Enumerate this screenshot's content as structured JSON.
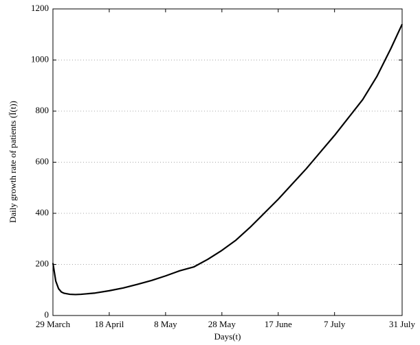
{
  "chart_data": {
    "type": "line",
    "xlabel": "Days(t)",
    "ylabel": "Daily growth rate of patients (Ï(t))",
    "x": [
      0,
      1,
      2,
      3,
      4,
      6,
      8,
      10,
      15,
      20,
      25,
      30,
      35,
      40,
      45,
      50,
      55,
      60,
      65,
      70,
      75,
      80,
      85,
      90,
      95,
      100,
      105,
      110,
      115,
      120,
      124
    ],
    "series": [
      {
        "color": "#000000",
        "values": [
          205,
          135,
          105,
          92,
          87,
          83,
          82,
          83,
          88,
          97,
          108,
          122,
          137,
          155,
          175,
          190,
          220,
          255,
          295,
          345,
          400,
          455,
          515,
          575,
          640,
          705,
          775,
          845,
          935,
          1045,
          1140
        ]
      }
    ],
    "xlim": [
      0,
      124
    ],
    "xticks": [
      {
        "value": 0,
        "label": "29 March"
      },
      {
        "value": 20,
        "label": "18 April"
      },
      {
        "value": 40,
        "label": "8 May"
      },
      {
        "value": 60,
        "label": "28 May"
      },
      {
        "value": 80,
        "label": "17 June"
      },
      {
        "value": 100,
        "label": "7 July"
      },
      {
        "value": 124,
        "label": "31 July"
      }
    ],
    "ylim": [
      0,
      1200
    ],
    "yticks": [
      0,
      200,
      400,
      600,
      800,
      1000,
      1200
    ],
    "grid": true
  }
}
